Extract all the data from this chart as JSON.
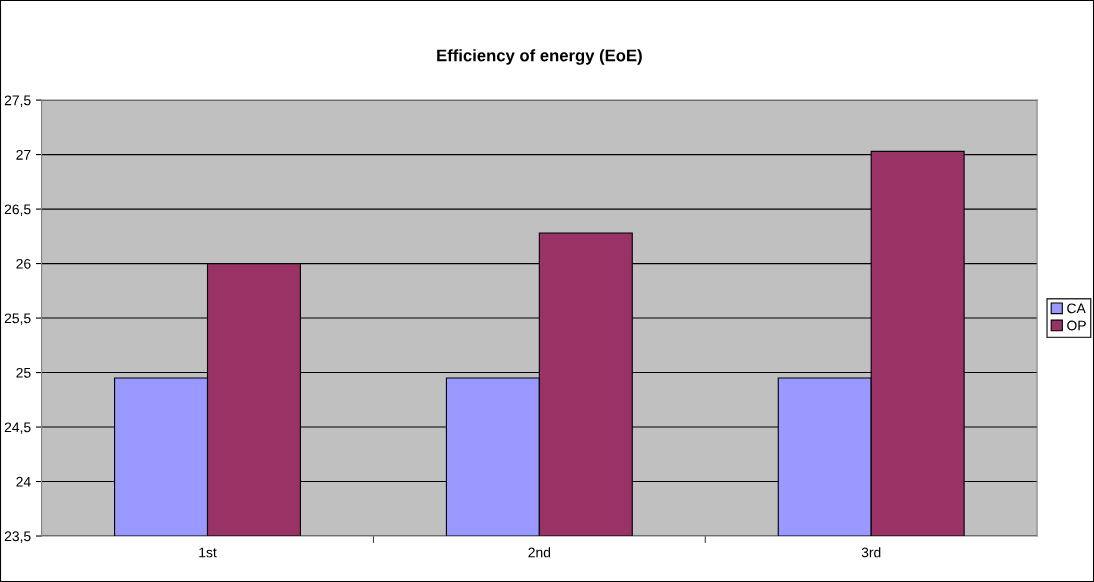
{
  "chart_data": {
    "type": "bar",
    "title": "Efficiency of energy (EoE)",
    "categories": [
      "1st",
      "2nd",
      "3rd"
    ],
    "series": [
      {
        "name": "CA",
        "color": "#9999ff",
        "values": [
          24.95,
          24.95,
          24.95
        ]
      },
      {
        "name": "OP",
        "color": "#993366",
        "values": [
          26.0,
          26.28,
          27.03
        ]
      }
    ],
    "ylim": [
      23.5,
      27.5
    ],
    "yticks": [
      {
        "value": 23.5,
        "label": "23,5"
      },
      24,
      {
        "value": 24.5,
        "label": "24,5"
      },
      25,
      {
        "value": 25.5,
        "label": "25,5"
      },
      26,
      {
        "value": 26.5,
        "label": "26,5"
      },
      27,
      {
        "value": 27.5,
        "label": "27,5"
      }
    ],
    "grid": "y",
    "legend": "right"
  }
}
